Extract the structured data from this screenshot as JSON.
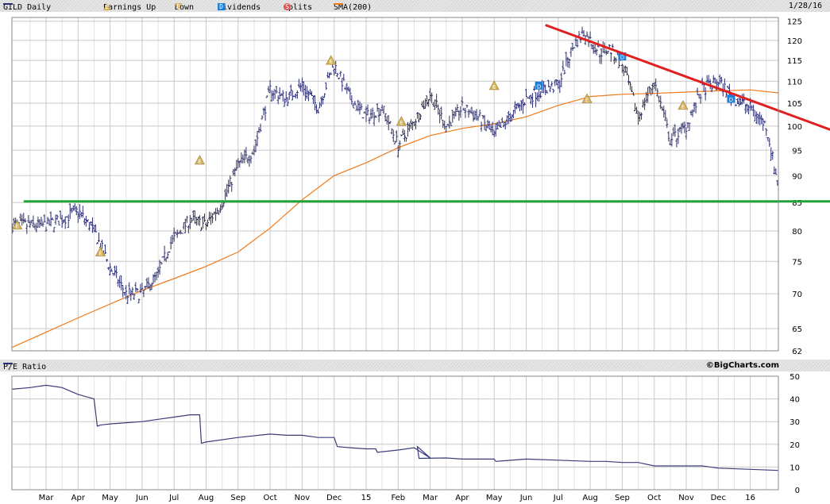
{
  "legend": {
    "symbol_label": "GILD Daily",
    "earnings_up_label": "Earnings Up",
    "down_label": "Down",
    "dividends_label": "Dividends",
    "splits_label": "Splits",
    "sma_label": "SMA(200)",
    "date": "1/28/16",
    "earnings_glyph": "E",
    "dividend_glyph": "D",
    "split_glyph": "S"
  },
  "lower_panel": {
    "label": "P/E Ratio",
    "credit": "©BigCharts.com"
  },
  "colors": {
    "price": "#2b2d6e",
    "sma": "#f07a1a",
    "trendline": "#e02020",
    "support": "#22a33a",
    "pe": "#3a3c7a",
    "grid": "#c8c8c8",
    "earnings_marker": "#d6b35a",
    "dividend_marker": "#1e7fd6"
  },
  "chart_data": [
    {
      "type": "ohlc",
      "title": "GILD Daily",
      "x_labels": [
        "Mar",
        "Apr",
        "May",
        "Jun",
        "Jul",
        "Aug",
        "Sep",
        "Oct",
        "Nov",
        "Dec",
        "15",
        "Feb",
        "Mar",
        "Apr",
        "May",
        "Jun",
        "Jul",
        "Aug",
        "Sep",
        "Oct",
        "Nov",
        "Dec",
        "16"
      ],
      "y_ticks": [
        62,
        65,
        70,
        75,
        80,
        85,
        90,
        95,
        100,
        105,
        110,
        115,
        120,
        125
      ],
      "y_scale": "log",
      "ylim": [
        62,
        126
      ],
      "grid": true,
      "series": [
        {
          "name": "GILD Daily",
          "kind": "price",
          "x": [
            0,
            0.5,
            1,
            1.5,
            2,
            2.5,
            3,
            3.5,
            3.9,
            4.2,
            4.5,
            5,
            5.5,
            6,
            6.5,
            7,
            7.5,
            8,
            8.5,
            9,
            9.5,
            10,
            10.5,
            11,
            11.5,
            12,
            12.5,
            13,
            13.5,
            14,
            14.5,
            15,
            15.5,
            16,
            16.5,
            16.8,
            17,
            17.3,
            17.6,
            18,
            18.5,
            19,
            19.5,
            20,
            20.5,
            21,
            21.5,
            22,
            22.5,
            22.9
          ],
          "y": [
            81,
            82,
            83.5,
            80,
            74,
            70,
            70,
            73,
            78,
            80,
            82,
            81,
            85,
            92,
            95,
            108,
            106,
            109,
            104,
            114,
            106,
            102,
            104,
            96,
            101,
            107,
            100,
            104,
            102,
            98,
            102,
            106,
            108,
            109,
            119,
            122,
            120,
            117,
            118,
            114,
            102,
            110,
            97,
            100,
            108,
            110,
            106,
            104,
            100,
            87
          ]
        },
        {
          "name": "SMA(200)",
          "kind": "sma",
          "x": [
            -1.3,
            0,
            1,
            2,
            3,
            4,
            5,
            6,
            7,
            8,
            9,
            10,
            11,
            12,
            13,
            14,
            15,
            16,
            17,
            18,
            19,
            20,
            21,
            22,
            22.9
          ],
          "y": [
            62,
            64.5,
            66.5,
            68.5,
            70.5,
            72.3,
            74.2,
            76.5,
            80.5,
            85.5,
            90,
            92.5,
            95.5,
            98,
            99.5,
            100.5,
            102,
            104.5,
            106.5,
            107,
            107.2,
            107.5,
            107.8,
            108,
            107.3
          ]
        }
      ],
      "annotations": {
        "earnings": [
          {
            "x": -0.9,
            "y": 81
          },
          {
            "x": 1.7,
            "y": 76.5
          },
          {
            "x": 4.8,
            "y": 93
          },
          {
            "x": 8.9,
            "y": 115
          },
          {
            "x": 11.1,
            "y": 101
          },
          {
            "x": 14.0,
            "y": 109
          },
          {
            "x": 16.9,
            "y": 106
          },
          {
            "x": 19.9,
            "y": 104.5
          }
        ],
        "dividends": [
          {
            "x": 15.4,
            "y": 109
          },
          {
            "x": 18.0,
            "y": 116
          },
          {
            "x": 21.4,
            "y": 106
          }
        ],
        "trendlines": [
          {
            "name": "resistance",
            "x": [
              15.6,
              24.6
            ],
            "y": [
              124,
              99
            ]
          },
          {
            "name": "support",
            "x": [
              -0.7,
              24.6
            ],
            "y": [
              85.2,
              85.2
            ]
          }
        ]
      }
    },
    {
      "type": "line",
      "title": "P/E Ratio",
      "x_labels": [
        "Mar",
        "Apr",
        "May",
        "Jun",
        "Jul",
        "Aug",
        "Sep",
        "Oct",
        "Nov",
        "Dec",
        "15",
        "Feb",
        "Mar",
        "Apr",
        "May",
        "Jun",
        "Jul",
        "Aug",
        "Sep",
        "Oct",
        "Nov",
        "Dec",
        "16"
      ],
      "y_ticks": [
        0,
        10,
        20,
        30,
        40,
        50
      ],
      "ylim": [
        0,
        50
      ],
      "grid": true,
      "series": [
        {
          "name": "P/E Ratio",
          "x": [
            -1.3,
            -0.5,
            0,
            0.5,
            1,
            1.5,
            1.6,
            1.7,
            2,
            2.5,
            3,
            3.5,
            4,
            4.5,
            4.8,
            4.85,
            5,
            6,
            7,
            7.5,
            8,
            8.5,
            9,
            9.1,
            9.5,
            10,
            10.3,
            10.35,
            11,
            11.5,
            12,
            11.6,
            11.65,
            12.5,
            13,
            14,
            14.05,
            15,
            16,
            17,
            17.5,
            18,
            18.5,
            19,
            19.5,
            20,
            20.5,
            21,
            22,
            22.9
          ],
          "y": [
            44,
            45,
            46,
            45,
            42,
            40,
            28,
            28.5,
            29,
            29.5,
            30,
            31,
            32,
            33,
            33,
            20.5,
            21,
            23,
            24.5,
            24,
            24,
            23,
            23,
            19,
            18.5,
            18,
            18,
            16.5,
            17.5,
            18.5,
            14,
            19,
            13.8,
            14,
            13.5,
            13.5,
            12.5,
            13.5,
            13,
            12.5,
            12.5,
            12,
            12,
            10.5,
            10.5,
            10.5,
            10.5,
            9.5,
            9,
            8.5
          ]
        }
      ]
    }
  ]
}
